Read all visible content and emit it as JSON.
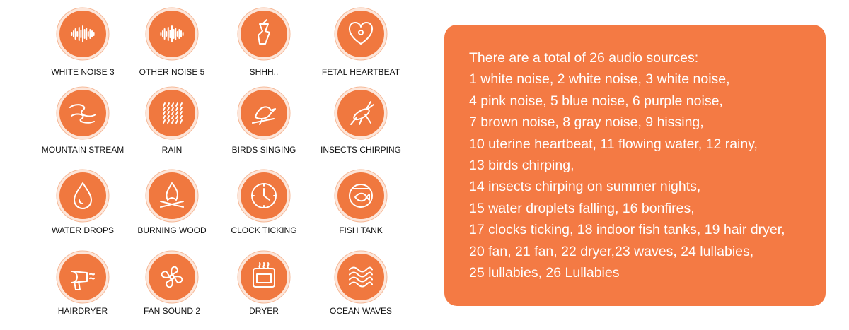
{
  "icons": [
    "WHITE NOISE 3",
    "OTHER NOISE 5",
    "SHHH..",
    "FETAL HEARTBEAT",
    "MOUNTAIN STREAM",
    "RAIN",
    "BIRDS SINGING",
    "INSECTS CHIRPING",
    "WATER DROPS",
    "BURNING WOOD",
    "CLOCK TICKING",
    "FISH TANK",
    "HAIRDRYER",
    "FAN SOUND 2",
    "DRYER",
    "OCEAN WAVES"
  ],
  "description": [
    "There are a total of 26 audio sources:",
    "1 white noise, 2 white noise, 3 white noise,",
    "4 pink noise, 5 blue noise, 6 purple noise,",
    "7 brown noise, 8 gray noise, 9 hissing,",
    "10 uterine heartbeat, 11 flowing water, 12 rainy,",
    "13 birds chirping,",
    "14 insects chirping on summer nights,",
    "15 water droplets falling, 16 bonfires,",
    "17 clocks ticking, 18 indoor fish tanks, 19 hair dryer,",
    "20 fan, 21 fan, 22 dryer,23 waves, 24 lullabies,",
    "25 lullabies, 26 Lullabies"
  ]
}
